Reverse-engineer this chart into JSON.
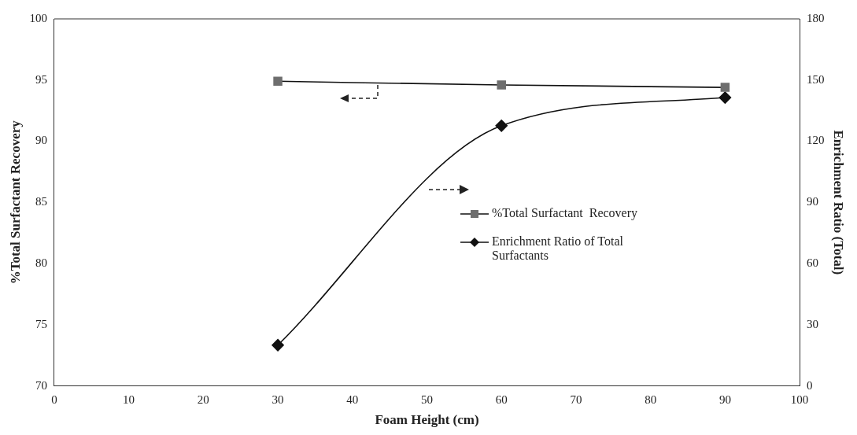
{
  "chart_data": {
    "type": "line",
    "xlabel": "Foam Height (cm)",
    "ylabel": "%Total Surfactant Recovery",
    "y2label": "Enrichment Ratio (Total)",
    "x": [
      30,
      60,
      90
    ],
    "series": [
      {
        "name": "%Total Surfactant  Recovery",
        "color": "#6e6e6e",
        "marker": "square",
        "values": [
          94.9,
          94.6,
          94.4
        ]
      },
      {
        "name": "Enrichment Ratio of Total Surfactants",
        "color": "#111111",
        "marker": "diamond",
        "axis": "y2",
        "values": [
          20,
          127.6,
          141.4
        ]
      }
    ],
    "xlim": [
      0,
      100
    ],
    "xticks": [
      0,
      10,
      20,
      30,
      40,
      50,
      60,
      70,
      80,
      90,
      100
    ],
    "ylim": [
      70,
      100
    ],
    "yticks": [
      70,
      75,
      80,
      85,
      90,
      95,
      100
    ],
    "y2lim": [
      0,
      180
    ],
    "y2ticks": [
      0,
      30,
      60,
      90,
      120,
      150,
      180
    ],
    "grid": false,
    "legend": "right",
    "line_style": "solid"
  }
}
